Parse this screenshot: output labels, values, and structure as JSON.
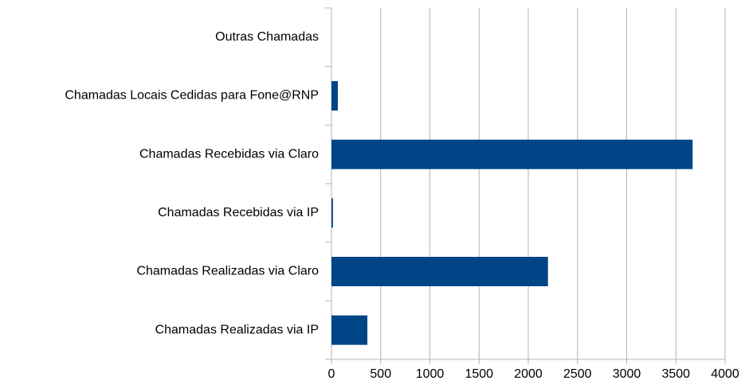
{
  "chart_data": {
    "type": "hbar",
    "categories": [
      "Outras Chamadas",
      "Chamadas Locais Cedidas para Fone@RNP",
      "Chamadas Recebidas via Claro",
      "Chamadas Recebidas via IP",
      "Chamadas Realizadas via Claro",
      "Chamadas Realizadas via IP"
    ],
    "values": [
      0,
      65,
      3670,
      15,
      2200,
      365
    ],
    "color": "#004586",
    "xlim": [
      0,
      4000
    ],
    "xticks": [
      0,
      500,
      1000,
      1500,
      2000,
      2500,
      3000,
      3500,
      4000
    ],
    "grid": true
  }
}
